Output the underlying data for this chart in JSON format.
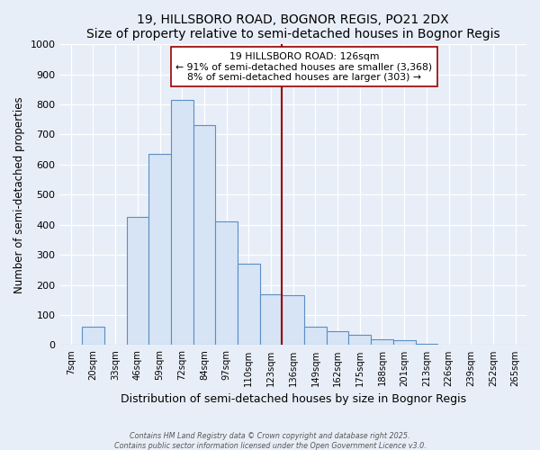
{
  "title": "19, HILLSBORO ROAD, BOGNOR REGIS, PO21 2DX",
  "subtitle": "Size of property relative to semi-detached houses in Bognor Regis",
  "xlabel": "Distribution of semi-detached houses by size in Bognor Regis",
  "ylabel": "Number of semi-detached properties",
  "bin_labels": [
    "7sqm",
    "20sqm",
    "33sqm",
    "46sqm",
    "59sqm",
    "72sqm",
    "84sqm",
    "97sqm",
    "110sqm",
    "123sqm",
    "136sqm",
    "149sqm",
    "162sqm",
    "175sqm",
    "188sqm",
    "201sqm",
    "213sqm",
    "226sqm",
    "239sqm",
    "252sqm",
    "265sqm"
  ],
  "bar_values": [
    0,
    60,
    0,
    425,
    635,
    815,
    730,
    410,
    270,
    170,
    165,
    60,
    45,
    35,
    20,
    15,
    5,
    2,
    1,
    0,
    0
  ],
  "bar_color": "#d6e4f5",
  "bar_edge_color": "#5b8ec4",
  "vline_x_index": 9,
  "vline_color": "#990000",
  "annotation_line1": "19 HILLSBORO ROAD: 126sqm",
  "annotation_line2": "← 91% of semi-detached houses are smaller (3,368)",
  "annotation_line3": "8% of semi-detached houses are larger (303) →",
  "annotation_box_color": "#ffffff",
  "annotation_box_edge": "#990000",
  "ylim": [
    0,
    1000
  ],
  "yticks": [
    0,
    100,
    200,
    300,
    400,
    500,
    600,
    700,
    800,
    900,
    1000
  ],
  "footer_line1": "Contains HM Land Registry data © Crown copyright and database right 2025.",
  "footer_line2": "Contains public sector information licensed under the Open Government Licence v3.0.",
  "background_color": "#e8eef8",
  "plot_background": "#e8eef8",
  "grid_color": "#ffffff",
  "figsize": [
    6.0,
    5.0
  ],
  "dpi": 100
}
